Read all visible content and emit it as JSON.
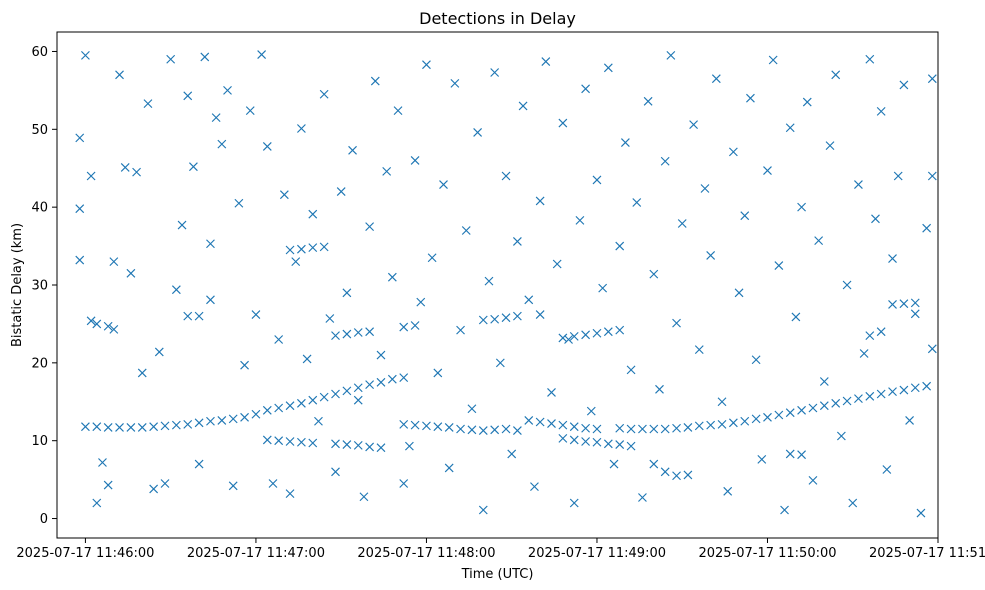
{
  "chart_data": {
    "type": "scatter",
    "title": "Detections in Delay",
    "xlabel": "Time (UTC)",
    "ylabel": "Bistatic Delay (km)",
    "x_unit": "UTC time",
    "xlim": [
      "2025-07-17 11:45:50",
      "2025-07-17 11:51:00"
    ],
    "ylim": [
      -2.5,
      62.5
    ],
    "x_ticks": [
      "2025-07-17 11:46:00",
      "2025-07-17 11:47:00",
      "2025-07-17 11:48:00",
      "2025-07-17 11:49:00",
      "2025-07-17 11:50:00",
      "2025-07-17 11:51:00"
    ],
    "y_ticks": [
      0,
      10,
      20,
      30,
      40,
      50,
      60
    ],
    "marker": "x",
    "color": "#1f77b4",
    "grid": false,
    "legend": "none",
    "series": [
      {
        "points": [
          [
            "11:46:00",
            11.8
          ],
          [
            "11:46:04",
            11.8
          ],
          [
            "11:46:08",
            11.7
          ],
          [
            "11:46:12",
            11.7
          ],
          [
            "11:46:16",
            11.7
          ],
          [
            "11:46:20",
            11.7
          ],
          [
            "11:46:24",
            11.8
          ],
          [
            "11:46:28",
            11.9
          ],
          [
            "11:46:32",
            12.0
          ],
          [
            "11:46:36",
            12.1
          ],
          [
            "11:46:40",
            12.3
          ],
          [
            "11:46:44",
            12.5
          ],
          [
            "11:46:48",
            12.6
          ],
          [
            "11:46:52",
            12.8
          ],
          [
            "11:46:56",
            13.0
          ],
          [
            "11:47:00",
            13.4
          ],
          [
            "11:47:04",
            13.9
          ],
          [
            "11:47:08",
            14.2
          ],
          [
            "11:47:12",
            14.5
          ],
          [
            "11:47:16",
            14.8
          ],
          [
            "11:47:20",
            15.2
          ],
          [
            "11:47:24",
            15.6
          ],
          [
            "11:47:28",
            16.0
          ],
          [
            "11:47:32",
            16.4
          ],
          [
            "11:47:36",
            16.8
          ],
          [
            "11:47:40",
            17.2
          ],
          [
            "11:47:44",
            17.5
          ],
          [
            "11:47:48",
            17.9
          ],
          [
            "11:47:52",
            18.1
          ],
          [
            "11:47:52",
            12.1
          ],
          [
            "11:47:56",
            12.0
          ],
          [
            "11:48:00",
            11.9
          ],
          [
            "11:48:04",
            11.8
          ],
          [
            "11:48:08",
            11.7
          ],
          [
            "11:48:12",
            11.5
          ],
          [
            "11:48:16",
            11.4
          ],
          [
            "11:48:20",
            11.3
          ],
          [
            "11:48:24",
            11.4
          ],
          [
            "11:48:28",
            11.5
          ],
          [
            "11:48:32",
            11.3
          ],
          [
            "11:48:36",
            12.6
          ],
          [
            "11:48:40",
            12.4
          ],
          [
            "11:48:44",
            12.2
          ],
          [
            "11:48:48",
            12.0
          ],
          [
            "11:48:52",
            11.8
          ],
          [
            "11:48:56",
            11.6
          ],
          [
            "11:49:00",
            11.5
          ],
          [
            "11:49:08",
            11.6
          ],
          [
            "11:49:12",
            11.5
          ],
          [
            "11:49:16",
            11.5
          ],
          [
            "11:49:20",
            11.5
          ],
          [
            "11:49:24",
            11.5
          ],
          [
            "11:49:28",
            11.6
          ],
          [
            "11:49:32",
            11.7
          ],
          [
            "11:49:36",
            11.9
          ],
          [
            "11:49:40",
            12.0
          ],
          [
            "11:49:44",
            12.1
          ],
          [
            "11:49:48",
            12.3
          ],
          [
            "11:49:52",
            12.5
          ],
          [
            "11:49:56",
            12.8
          ],
          [
            "11:50:00",
            13.0
          ],
          [
            "11:50:04",
            13.3
          ],
          [
            "11:50:08",
            13.6
          ],
          [
            "11:50:12",
            13.9
          ],
          [
            "11:50:16",
            14.2
          ],
          [
            "11:50:20",
            14.5
          ],
          [
            "11:50:24",
            14.8
          ],
          [
            "11:50:28",
            15.1
          ],
          [
            "11:50:32",
            15.4
          ],
          [
            "11:50:36",
            15.7
          ],
          [
            "11:50:40",
            16.0
          ],
          [
            "11:50:44",
            16.3
          ],
          [
            "11:50:48",
            16.5
          ],
          [
            "11:50:52",
            16.8
          ],
          [
            "11:50:56",
            17.0
          ],
          [
            "11:47:04",
            10.1
          ],
          [
            "11:47:08",
            10.0
          ],
          [
            "11:47:12",
            9.9
          ],
          [
            "11:47:16",
            9.8
          ],
          [
            "11:47:20",
            9.7
          ],
          [
            "11:47:28",
            9.6
          ],
          [
            "11:47:32",
            9.5
          ],
          [
            "11:47:36",
            9.4
          ],
          [
            "11:47:40",
            9.2
          ],
          [
            "11:47:44",
            9.1
          ],
          [
            "11:48:48",
            10.3
          ],
          [
            "11:48:52",
            10.1
          ],
          [
            "11:48:56",
            9.9
          ],
          [
            "11:49:00",
            9.8
          ],
          [
            "11:49:04",
            9.6
          ],
          [
            "11:49:08",
            9.5
          ],
          [
            "11:49:12",
            9.3
          ],
          [
            "11:49:20",
            7.0
          ],
          [
            "11:49:24",
            6.0
          ],
          [
            "11:49:28",
            5.5
          ],
          [
            "11:50:08",
            8.3
          ],
          [
            "11:50:12",
            8.2
          ],
          [
            "11:46:02",
            25.4
          ],
          [
            "11:46:04",
            25.0
          ],
          [
            "11:46:08",
            24.7
          ],
          [
            "11:46:10",
            24.3
          ],
          [
            "11:46:36",
            26.0
          ],
          [
            "11:46:40",
            26.0
          ],
          [
            "11:46:44",
            28.1
          ],
          [
            "11:47:12",
            34.5
          ],
          [
            "11:47:16",
            34.6
          ],
          [
            "11:47:20",
            34.8
          ],
          [
            "11:47:24",
            34.9
          ],
          [
            "11:47:28",
            23.5
          ],
          [
            "11:47:32",
            23.7
          ],
          [
            "11:47:36",
            23.9
          ],
          [
            "11:47:40",
            24.0
          ],
          [
            "11:47:52",
            24.6
          ],
          [
            "11:47:56",
            24.8
          ],
          [
            "11:48:20",
            25.5
          ],
          [
            "11:48:24",
            25.6
          ],
          [
            "11:48:28",
            25.8
          ],
          [
            "11:48:32",
            26.0
          ],
          [
            "11:48:40",
            26.2
          ],
          [
            "11:48:48",
            23.2
          ],
          [
            "11:48:52",
            23.4
          ],
          [
            "11:48:56",
            23.6
          ],
          [
            "11:49:00",
            23.8
          ],
          [
            "11:49:04",
            24.0
          ],
          [
            "11:49:08",
            24.2
          ],
          [
            "11:50:36",
            23.5
          ],
          [
            "11:50:40",
            24.0
          ],
          [
            "11:50:44",
            27.5
          ],
          [
            "11:50:48",
            27.6
          ],
          [
            "11:50:52",
            27.7
          ],
          [
            "11:45:58",
            48.9
          ],
          [
            "11:45:58",
            39.8
          ],
          [
            "11:45:58",
            33.2
          ],
          [
            "11:46:00",
            59.5
          ],
          [
            "11:46:02",
            44.0
          ],
          [
            "11:46:04",
            2.0
          ],
          [
            "11:46:06",
            7.2
          ],
          [
            "11:46:08",
            4.3
          ],
          [
            "11:46:10",
            33.0
          ],
          [
            "11:46:12",
            57.0
          ],
          [
            "11:46:14",
            45.1
          ],
          [
            "11:46:16",
            31.5
          ],
          [
            "11:46:18",
            44.5
          ],
          [
            "11:46:20",
            18.7
          ],
          [
            "11:46:22",
            53.3
          ],
          [
            "11:46:24",
            3.8
          ],
          [
            "11:46:26",
            21.4
          ],
          [
            "11:46:28",
            4.5
          ],
          [
            "11:46:30",
            59.0
          ],
          [
            "11:46:32",
            29.4
          ],
          [
            "11:46:34",
            37.7
          ],
          [
            "11:46:36",
            54.3
          ],
          [
            "11:46:38",
            45.2
          ],
          [
            "11:46:40",
            7.0
          ],
          [
            "11:46:42",
            59.3
          ],
          [
            "11:46:44",
            35.3
          ],
          [
            "11:46:46",
            51.5
          ],
          [
            "11:46:48",
            48.1
          ],
          [
            "11:46:50",
            55.0
          ],
          [
            "11:46:52",
            4.2
          ],
          [
            "11:46:54",
            40.5
          ],
          [
            "11:46:56",
            19.7
          ],
          [
            "11:46:58",
            52.4
          ],
          [
            "11:47:00",
            26.2
          ],
          [
            "11:47:02",
            59.6
          ],
          [
            "11:47:04",
            47.8
          ],
          [
            "11:47:06",
            4.5
          ],
          [
            "11:47:08",
            23.0
          ],
          [
            "11:47:10",
            41.6
          ],
          [
            "11:47:12",
            3.2
          ],
          [
            "11:47:14",
            33.0
          ],
          [
            "11:47:16",
            50.1
          ],
          [
            "11:47:18",
            20.5
          ],
          [
            "11:47:20",
            39.1
          ],
          [
            "11:47:22",
            12.5
          ],
          [
            "11:47:24",
            54.5
          ],
          [
            "11:47:26",
            25.7
          ],
          [
            "11:47:28",
            6.0
          ],
          [
            "11:47:30",
            42.0
          ],
          [
            "11:47:32",
            29.0
          ],
          [
            "11:47:34",
            47.3
          ],
          [
            "11:47:36",
            15.2
          ],
          [
            "11:47:38",
            2.8
          ],
          [
            "11:47:40",
            37.5
          ],
          [
            "11:47:42",
            56.2
          ],
          [
            "11:47:44",
            21.0
          ],
          [
            "11:47:46",
            44.6
          ],
          [
            "11:47:48",
            31.0
          ],
          [
            "11:47:50",
            52.4
          ],
          [
            "11:47:52",
            4.5
          ],
          [
            "11:47:54",
            9.3
          ],
          [
            "11:47:56",
            46.0
          ],
          [
            "11:47:58",
            27.8
          ],
          [
            "11:48:00",
            58.3
          ],
          [
            "11:48:02",
            33.5
          ],
          [
            "11:48:04",
            18.7
          ],
          [
            "11:48:06",
            42.9
          ],
          [
            "11:48:08",
            6.5
          ],
          [
            "11:48:10",
            55.9
          ],
          [
            "11:48:12",
            24.2
          ],
          [
            "11:48:14",
            37.0
          ],
          [
            "11:48:16",
            14.1
          ],
          [
            "11:48:18",
            49.6
          ],
          [
            "11:48:20",
            1.1
          ],
          [
            "11:48:22",
            30.5
          ],
          [
            "11:48:24",
            57.3
          ],
          [
            "11:48:26",
            20.0
          ],
          [
            "11:48:28",
            44.0
          ],
          [
            "11:48:30",
            8.3
          ],
          [
            "11:48:32",
            35.6
          ],
          [
            "11:48:34",
            53.0
          ],
          [
            "11:48:36",
            28.1
          ],
          [
            "11:48:38",
            4.1
          ],
          [
            "11:48:40",
            40.8
          ],
          [
            "11:48:42",
            58.7
          ],
          [
            "11:48:44",
            16.2
          ],
          [
            "11:48:46",
            32.7
          ],
          [
            "11:48:48",
            50.8
          ],
          [
            "11:48:50",
            23.0
          ],
          [
            "11:48:52",
            2.0
          ],
          [
            "11:48:54",
            38.3
          ],
          [
            "11:48:56",
            55.2
          ],
          [
            "11:48:58",
            13.8
          ],
          [
            "11:49:00",
            43.5
          ],
          [
            "11:49:02",
            29.6
          ],
          [
            "11:49:04",
            57.9
          ],
          [
            "11:49:06",
            7.0
          ],
          [
            "11:49:08",
            35.0
          ],
          [
            "11:49:10",
            48.3
          ],
          [
            "11:49:12",
            19.1
          ],
          [
            "11:49:14",
            40.6
          ],
          [
            "11:49:16",
            2.7
          ],
          [
            "11:49:18",
            53.6
          ],
          [
            "11:49:20",
            31.4
          ],
          [
            "11:49:22",
            16.6
          ],
          [
            "11:49:24",
            45.9
          ],
          [
            "11:49:26",
            59.5
          ],
          [
            "11:49:28",
            25.1
          ],
          [
            "11:49:30",
            37.9
          ],
          [
            "11:49:32",
            5.6
          ],
          [
            "11:49:34",
            50.6
          ],
          [
            "11:49:36",
            21.7
          ],
          [
            "11:49:38",
            42.4
          ],
          [
            "11:49:40",
            33.8
          ],
          [
            "11:49:42",
            56.5
          ],
          [
            "11:49:44",
            15.0
          ],
          [
            "11:49:46",
            3.5
          ],
          [
            "11:49:48",
            47.1
          ],
          [
            "11:49:50",
            29.0
          ],
          [
            "11:49:52",
            38.9
          ],
          [
            "11:49:54",
            54.0
          ],
          [
            "11:49:56",
            20.4
          ],
          [
            "11:49:58",
            7.6
          ],
          [
            "11:50:00",
            44.7
          ],
          [
            "11:50:02",
            58.9
          ],
          [
            "11:50:04",
            32.5
          ],
          [
            "11:50:06",
            1.1
          ],
          [
            "11:50:08",
            50.2
          ],
          [
            "11:50:10",
            25.9
          ],
          [
            "11:50:12",
            40.0
          ],
          [
            "11:50:14",
            53.5
          ],
          [
            "11:50:16",
            4.9
          ],
          [
            "11:50:18",
            35.7
          ],
          [
            "11:50:20",
            17.6
          ],
          [
            "11:50:22",
            47.9
          ],
          [
            "11:50:24",
            57.0
          ],
          [
            "11:50:26",
            10.6
          ],
          [
            "11:50:28",
            30.0
          ],
          [
            "11:50:30",
            2.0
          ],
          [
            "11:50:32",
            42.9
          ],
          [
            "11:50:34",
            21.2
          ],
          [
            "11:50:36",
            59.0
          ],
          [
            "11:50:38",
            38.5
          ],
          [
            "11:50:40",
            52.3
          ],
          [
            "11:50:42",
            6.3
          ],
          [
            "11:50:44",
            33.4
          ],
          [
            "11:50:46",
            44.0
          ],
          [
            "11:50:48",
            55.7
          ],
          [
            "11:50:50",
            12.6
          ],
          [
            "11:50:52",
            26.3
          ],
          [
            "11:50:54",
            0.7
          ],
          [
            "11:50:56",
            37.3
          ],
          [
            "11:50:58",
            56.5
          ],
          [
            "11:50:58",
            44.0
          ],
          [
            "11:50:58",
            21.8
          ]
        ]
      }
    ]
  }
}
